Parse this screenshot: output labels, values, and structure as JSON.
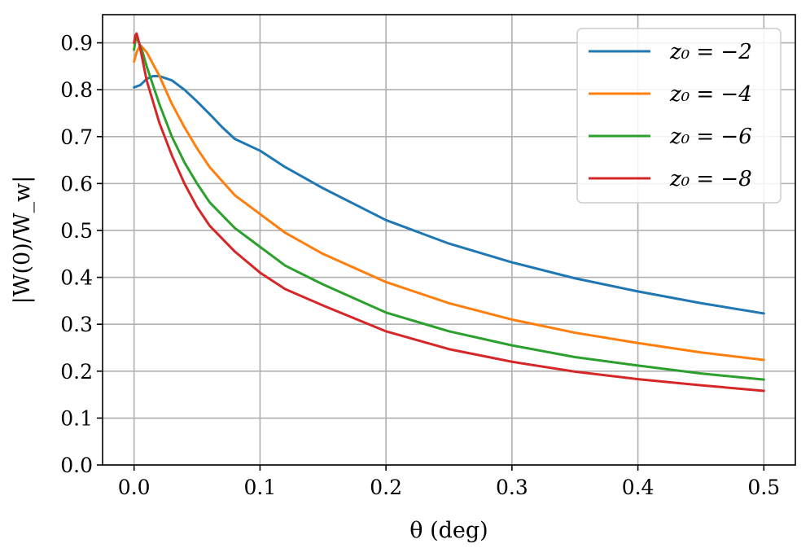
{
  "chart_data": {
    "type": "line",
    "title": "",
    "xlabel": "θ (deg)",
    "ylabel": "|W(0)/W_w|",
    "xlim": [
      -0.025,
      0.525
    ],
    "ylim": [
      0.0,
      0.96
    ],
    "grid": true,
    "legend_position": "top-right",
    "x_ticks": [
      {
        "value": 0.0,
        "label": "0.0"
      },
      {
        "value": 0.1,
        "label": "0.1"
      },
      {
        "value": 0.2,
        "label": "0.2"
      },
      {
        "value": 0.3,
        "label": "0.3"
      },
      {
        "value": 0.4,
        "label": "0.4"
      },
      {
        "value": 0.5,
        "label": "0.5"
      }
    ],
    "y_ticks": [
      {
        "value": 0.0,
        "label": "0.0"
      },
      {
        "value": 0.1,
        "label": "0.1"
      },
      {
        "value": 0.2,
        "label": "0.2"
      },
      {
        "value": 0.3,
        "label": "0.3"
      },
      {
        "value": 0.4,
        "label": "0.4"
      },
      {
        "value": 0.5,
        "label": "0.5"
      },
      {
        "value": 0.6,
        "label": "0.6"
      },
      {
        "value": 0.7,
        "label": "0.7"
      },
      {
        "value": 0.8,
        "label": "0.8"
      },
      {
        "value": 0.9,
        "label": "0.9"
      }
    ],
    "series": [
      {
        "name": "z₀ = −2",
        "color": "#1f77b4",
        "x": [
          0.0,
          0.005,
          0.01,
          0.015,
          0.02,
          0.03,
          0.04,
          0.05,
          0.06,
          0.07,
          0.08,
          0.1,
          0.12,
          0.15,
          0.2,
          0.25,
          0.3,
          0.35,
          0.4,
          0.45,
          0.5
        ],
        "y": [
          0.805,
          0.81,
          0.823,
          0.829,
          0.829,
          0.82,
          0.8,
          0.775,
          0.748,
          0.72,
          0.695,
          0.67,
          0.635,
          0.59,
          0.522,
          0.472,
          0.432,
          0.398,
          0.37,
          0.345,
          0.323
        ]
      },
      {
        "name": "z₀ = −4",
        "color": "#ff7f0e",
        "x": [
          0.0,
          0.002,
          0.005,
          0.01,
          0.015,
          0.02,
          0.03,
          0.04,
          0.05,
          0.06,
          0.08,
          0.1,
          0.12,
          0.15,
          0.2,
          0.25,
          0.3,
          0.35,
          0.4,
          0.45,
          0.5
        ],
        "y": [
          0.86,
          0.88,
          0.895,
          0.88,
          0.855,
          0.83,
          0.77,
          0.72,
          0.675,
          0.635,
          0.575,
          0.535,
          0.495,
          0.45,
          0.39,
          0.345,
          0.31,
          0.282,
          0.26,
          0.24,
          0.224
        ]
      },
      {
        "name": "z₀ = −6",
        "color": "#2ca02c",
        "x": [
          0.0,
          0.001,
          0.002,
          0.004,
          0.007,
          0.01,
          0.02,
          0.03,
          0.04,
          0.05,
          0.06,
          0.08,
          0.1,
          0.12,
          0.15,
          0.2,
          0.25,
          0.3,
          0.35,
          0.4,
          0.45,
          0.5
        ],
        "y": [
          0.885,
          0.905,
          0.91,
          0.9,
          0.878,
          0.85,
          0.77,
          0.7,
          0.645,
          0.6,
          0.56,
          0.505,
          0.465,
          0.425,
          0.385,
          0.325,
          0.285,
          0.255,
          0.23,
          0.212,
          0.195,
          0.182
        ]
      },
      {
        "name": "z₀ = −8",
        "color": "#d62728",
        "x": [
          0.0,
          0.001,
          0.002,
          0.004,
          0.007,
          0.01,
          0.02,
          0.03,
          0.04,
          0.05,
          0.06,
          0.08,
          0.1,
          0.12,
          0.15,
          0.2,
          0.25,
          0.3,
          0.35,
          0.4,
          0.45,
          0.5
        ],
        "y": [
          0.9,
          0.915,
          0.92,
          0.9,
          0.86,
          0.82,
          0.73,
          0.66,
          0.6,
          0.55,
          0.51,
          0.455,
          0.41,
          0.375,
          0.34,
          0.285,
          0.247,
          0.22,
          0.199,
          0.183,
          0.17,
          0.158
        ]
      }
    ]
  }
}
